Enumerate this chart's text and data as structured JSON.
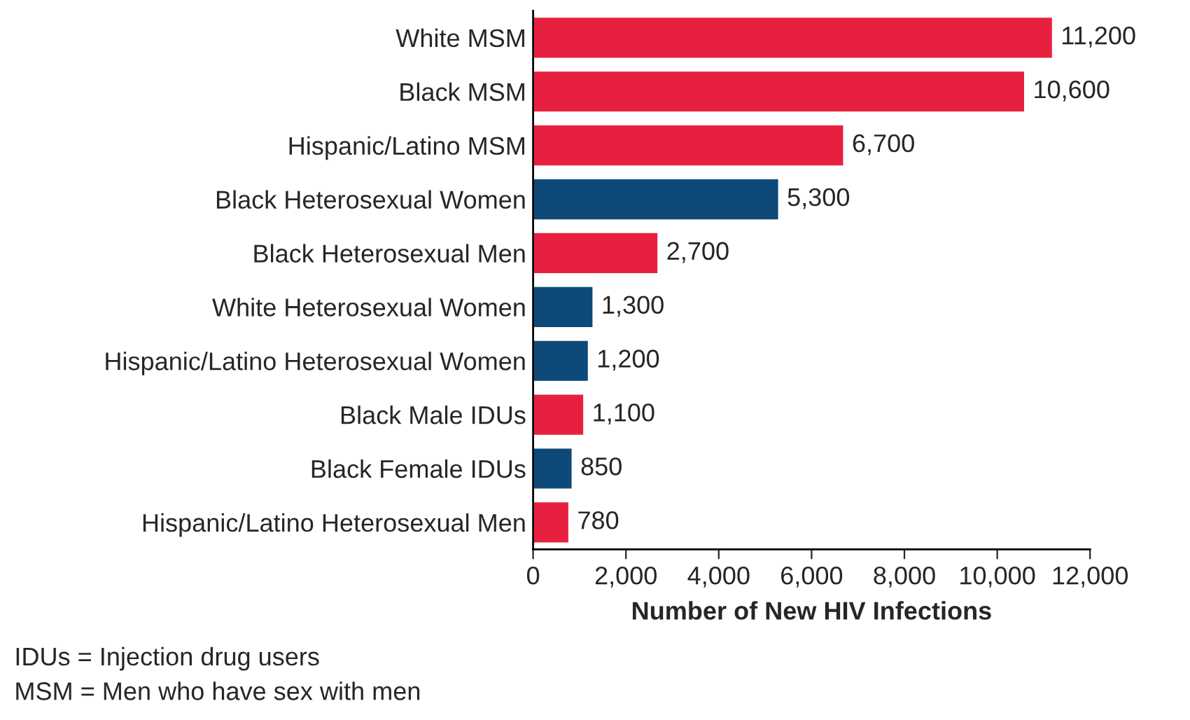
{
  "chart_data": {
    "type": "bar",
    "orientation": "horizontal",
    "categories": [
      "White MSM",
      "Black MSM",
      "Hispanic/Latino MSM",
      "Black Heterosexual Women",
      "Black Heterosexual Men",
      "White Heterosexual Women",
      "Hispanic/Latino Heterosexual Women",
      "Black Male IDUs",
      "Black Female IDUs",
      "Hispanic/Latino Heterosexual Men"
    ],
    "values": [
      11200,
      10600,
      6700,
      5300,
      2700,
      1300,
      1200,
      1100,
      850,
      780
    ],
    "colors": [
      "#e8203f",
      "#e8203f",
      "#e8203f",
      "#0d4a7a",
      "#e8203f",
      "#0d4a7a",
      "#0d4a7a",
      "#e8203f",
      "#0d4a7a",
      "#e8203f"
    ],
    "value_labels": [
      "11,200",
      "10,600",
      "6,700",
      "5,300",
      "2,700",
      "1,300",
      "1,200",
      "1,100",
      "850",
      "780"
    ],
    "xlim": [
      0,
      12000
    ],
    "xticks": [
      0,
      {
        "value": 2000,
        "label": "2,000"
      },
      {
        "value": 4000,
        "label": "4,000"
      },
      {
        "value": 6000,
        "label": "6,000"
      },
      {
        "value": 8000,
        "label": "8,000"
      },
      {
        "value": 10000,
        "label": "10,000"
      },
      {
        "value": 12000,
        "label": "12,000"
      }
    ],
    "xlabel": "Number of New HIV Infections",
    "grid": false,
    "legend": false,
    "annotations": [
      "IDUs = Injection drug users",
      "MSM = Men who have sex with men"
    ]
  }
}
